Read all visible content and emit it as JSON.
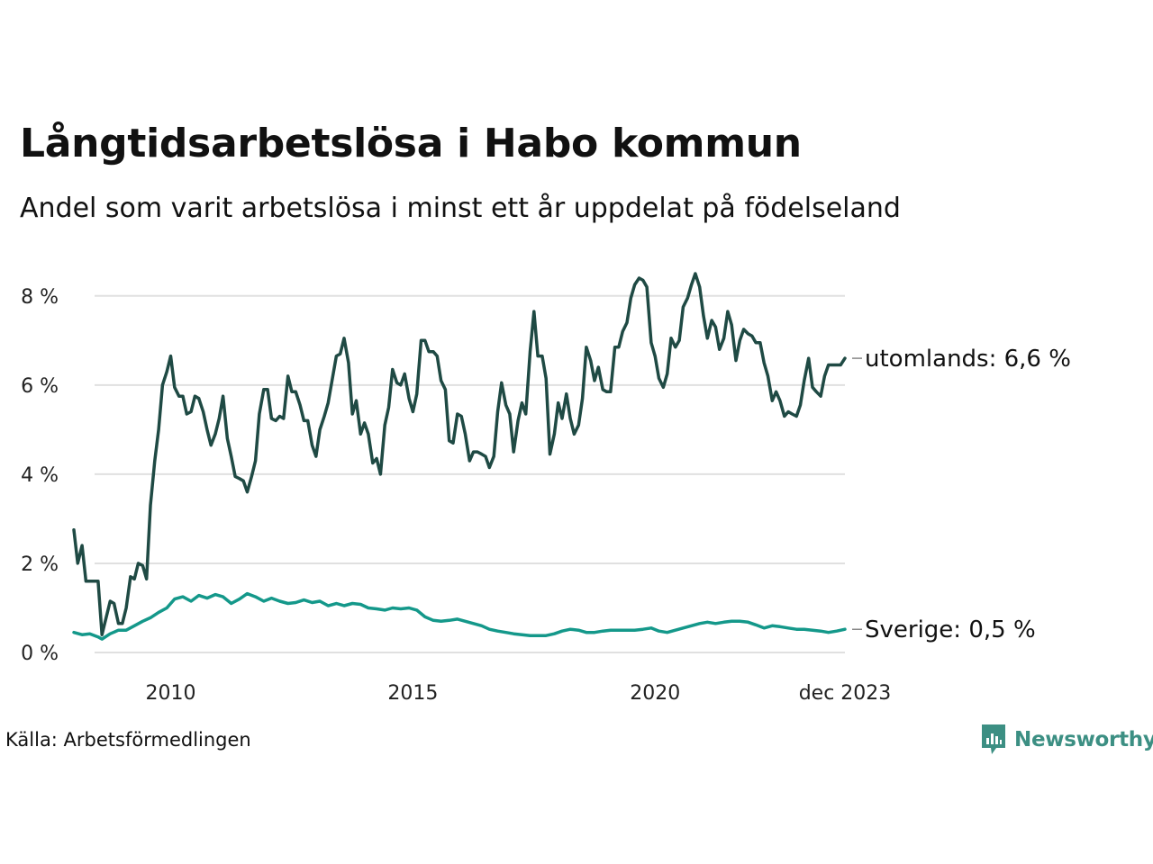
{
  "chart_data": {
    "type": "line",
    "title": "Långtidsarbetslösa i Habo kommun",
    "subtitle": "Andel som varit arbetslösa i minst ett år uppdelat på födelseland",
    "ylim": [
      0,
      8.5
    ],
    "yticks": [
      {
        "value": 0,
        "label": "0 %"
      },
      {
        "value": 2,
        "label": "2 %"
      },
      {
        "value": 4,
        "label": "4 %"
      },
      {
        "value": 6,
        "label": "6 %"
      },
      {
        "value": 8,
        "label": "8 %"
      }
    ],
    "xlim": [
      2008.0,
      2023.92
    ],
    "xticks": [
      {
        "value": 2010.0,
        "label": "2010"
      },
      {
        "value": 2015.0,
        "label": "2015"
      },
      {
        "value": 2020.0,
        "label": "2020"
      },
      {
        "value": 2023.92,
        "label": "dec 2023"
      }
    ],
    "grid": true,
    "series": [
      {
        "name": "utomlands",
        "end_label": "utomlands: 6,6 %",
        "color": "#1f4a44",
        "points": [
          [
            2008.0,
            2.75
          ],
          [
            2008.08,
            2.0
          ],
          [
            2008.17,
            2.4
          ],
          [
            2008.25,
            1.6
          ],
          [
            2008.5,
            1.6
          ],
          [
            2008.58,
            0.4
          ],
          [
            2008.75,
            1.15
          ],
          [
            2008.83,
            1.1
          ],
          [
            2008.92,
            0.65
          ],
          [
            2009.0,
            0.65
          ],
          [
            2009.08,
            1.0
          ],
          [
            2009.17,
            1.7
          ],
          [
            2009.25,
            1.65
          ],
          [
            2009.33,
            2.0
          ],
          [
            2009.42,
            1.95
          ],
          [
            2009.5,
            1.65
          ],
          [
            2009.58,
            3.3
          ],
          [
            2009.67,
            4.3
          ],
          [
            2009.75,
            5.0
          ],
          [
            2009.83,
            6.0
          ],
          [
            2009.92,
            6.3
          ],
          [
            2010.0,
            6.65
          ],
          [
            2010.08,
            5.95
          ],
          [
            2010.17,
            5.75
          ],
          [
            2010.25,
            5.75
          ],
          [
            2010.33,
            5.35
          ],
          [
            2010.42,
            5.4
          ],
          [
            2010.5,
            5.75
          ],
          [
            2010.58,
            5.7
          ],
          [
            2010.67,
            5.4
          ],
          [
            2010.75,
            5.0
          ],
          [
            2010.83,
            4.65
          ],
          [
            2010.92,
            4.9
          ],
          [
            2011.0,
            5.25
          ],
          [
            2011.08,
            5.75
          ],
          [
            2011.17,
            4.8
          ],
          [
            2011.25,
            4.4
          ],
          [
            2011.33,
            3.95
          ],
          [
            2011.42,
            3.9
          ],
          [
            2011.5,
            3.85
          ],
          [
            2011.58,
            3.6
          ],
          [
            2011.67,
            3.95
          ],
          [
            2011.75,
            4.3
          ],
          [
            2011.83,
            5.35
          ],
          [
            2011.92,
            5.9
          ],
          [
            2012.0,
            5.9
          ],
          [
            2012.08,
            5.25
          ],
          [
            2012.17,
            5.2
          ],
          [
            2012.25,
            5.3
          ],
          [
            2012.33,
            5.25
          ],
          [
            2012.42,
            6.2
          ],
          [
            2012.5,
            5.85
          ],
          [
            2012.58,
            5.85
          ],
          [
            2012.67,
            5.55
          ],
          [
            2012.75,
            5.2
          ],
          [
            2012.83,
            5.2
          ],
          [
            2012.92,
            4.65
          ],
          [
            2013.0,
            4.4
          ],
          [
            2013.08,
            5.0
          ],
          [
            2013.17,
            5.3
          ],
          [
            2013.25,
            5.6
          ],
          [
            2013.33,
            6.1
          ],
          [
            2013.42,
            6.65
          ],
          [
            2013.5,
            6.7
          ],
          [
            2013.58,
            7.05
          ],
          [
            2013.67,
            6.5
          ],
          [
            2013.75,
            5.35
          ],
          [
            2013.83,
            5.65
          ],
          [
            2013.92,
            4.9
          ],
          [
            2014.0,
            5.15
          ],
          [
            2014.08,
            4.9
          ],
          [
            2014.17,
            4.25
          ],
          [
            2014.25,
            4.35
          ],
          [
            2014.33,
            4.0
          ],
          [
            2014.42,
            5.1
          ],
          [
            2014.5,
            5.5
          ],
          [
            2014.58,
            6.35
          ],
          [
            2014.67,
            6.05
          ],
          [
            2014.75,
            6.0
          ],
          [
            2014.83,
            6.25
          ],
          [
            2014.92,
            5.7
          ],
          [
            2015.0,
            5.4
          ],
          [
            2015.08,
            5.8
          ],
          [
            2015.17,
            7.0
          ],
          [
            2015.25,
            7.0
          ],
          [
            2015.33,
            6.75
          ],
          [
            2015.42,
            6.75
          ],
          [
            2015.5,
            6.65
          ],
          [
            2015.58,
            6.1
          ],
          [
            2015.67,
            5.9
          ],
          [
            2015.75,
            4.75
          ],
          [
            2015.83,
            4.7
          ],
          [
            2015.92,
            5.35
          ],
          [
            2016.0,
            5.3
          ],
          [
            2016.08,
            4.9
          ],
          [
            2016.17,
            4.3
          ],
          [
            2016.25,
            4.5
          ],
          [
            2016.33,
            4.5
          ],
          [
            2016.42,
            4.45
          ],
          [
            2016.5,
            4.4
          ],
          [
            2016.58,
            4.15
          ],
          [
            2016.67,
            4.4
          ],
          [
            2016.75,
            5.4
          ],
          [
            2016.83,
            6.05
          ],
          [
            2016.92,
            5.55
          ],
          [
            2017.0,
            5.35
          ],
          [
            2017.08,
            4.5
          ],
          [
            2017.17,
            5.2
          ],
          [
            2017.25,
            5.6
          ],
          [
            2017.33,
            5.35
          ],
          [
            2017.42,
            6.75
          ],
          [
            2017.5,
            7.65
          ],
          [
            2017.58,
            6.65
          ],
          [
            2017.67,
            6.65
          ],
          [
            2017.75,
            6.15
          ],
          [
            2017.83,
            4.45
          ],
          [
            2017.92,
            4.9
          ],
          [
            2018.0,
            5.6
          ],
          [
            2018.08,
            5.25
          ],
          [
            2018.17,
            5.8
          ],
          [
            2018.25,
            5.25
          ],
          [
            2018.33,
            4.9
          ],
          [
            2018.42,
            5.1
          ],
          [
            2018.5,
            5.7
          ],
          [
            2018.58,
            6.85
          ],
          [
            2018.67,
            6.55
          ],
          [
            2018.75,
            6.1
          ],
          [
            2018.83,
            6.4
          ],
          [
            2018.92,
            5.9
          ],
          [
            2019.0,
            5.85
          ],
          [
            2019.08,
            5.85
          ],
          [
            2019.17,
            6.85
          ],
          [
            2019.25,
            6.85
          ],
          [
            2019.33,
            7.2
          ],
          [
            2019.42,
            7.4
          ],
          [
            2019.5,
            7.95
          ],
          [
            2019.58,
            8.25
          ],
          [
            2019.67,
            8.4
          ],
          [
            2019.75,
            8.35
          ],
          [
            2019.83,
            8.2
          ],
          [
            2019.92,
            6.95
          ],
          [
            2020.0,
            6.65
          ],
          [
            2020.08,
            6.15
          ],
          [
            2020.17,
            5.95
          ],
          [
            2020.25,
            6.25
          ],
          [
            2020.33,
            7.05
          ],
          [
            2020.42,
            6.85
          ],
          [
            2020.5,
            7.0
          ],
          [
            2020.58,
            7.75
          ],
          [
            2020.67,
            7.95
          ],
          [
            2020.75,
            8.25
          ],
          [
            2020.83,
            8.5
          ],
          [
            2020.92,
            8.2
          ],
          [
            2021.0,
            7.55
          ],
          [
            2021.08,
            7.05
          ],
          [
            2021.17,
            7.45
          ],
          [
            2021.25,
            7.3
          ],
          [
            2021.33,
            6.8
          ],
          [
            2021.42,
            7.05
          ],
          [
            2021.5,
            7.65
          ],
          [
            2021.58,
            7.35
          ],
          [
            2021.67,
            6.55
          ],
          [
            2021.75,
            7.0
          ],
          [
            2021.83,
            7.25
          ],
          [
            2021.92,
            7.15
          ],
          [
            2022.0,
            7.1
          ],
          [
            2022.08,
            6.95
          ],
          [
            2022.17,
            6.95
          ],
          [
            2022.25,
            6.5
          ],
          [
            2022.33,
            6.2
          ],
          [
            2022.42,
            5.65
          ],
          [
            2022.5,
            5.85
          ],
          [
            2022.58,
            5.65
          ],
          [
            2022.67,
            5.3
          ],
          [
            2022.75,
            5.4
          ],
          [
            2022.83,
            5.35
          ],
          [
            2022.92,
            5.3
          ],
          [
            2023.0,
            5.55
          ],
          [
            2023.08,
            6.1
          ],
          [
            2023.17,
            6.6
          ],
          [
            2023.25,
            5.95
          ],
          [
            2023.33,
            5.85
          ],
          [
            2023.42,
            5.75
          ],
          [
            2023.5,
            6.2
          ],
          [
            2023.58,
            6.45
          ],
          [
            2023.67,
            6.45
          ],
          [
            2023.75,
            6.45
          ],
          [
            2023.83,
            6.45
          ],
          [
            2023.92,
            6.6
          ]
        ]
      },
      {
        "name": "Sverige",
        "end_label": "Sverige: 0,5 %",
        "color": "#14988a",
        "points": [
          [
            2008.0,
            0.45
          ],
          [
            2008.17,
            0.4
          ],
          [
            2008.33,
            0.42
          ],
          [
            2008.5,
            0.35
          ],
          [
            2008.58,
            0.3
          ],
          [
            2008.75,
            0.42
          ],
          [
            2008.92,
            0.5
          ],
          [
            2009.08,
            0.5
          ],
          [
            2009.25,
            0.6
          ],
          [
            2009.42,
            0.7
          ],
          [
            2009.58,
            0.78
          ],
          [
            2009.75,
            0.9
          ],
          [
            2009.92,
            1.0
          ],
          [
            2010.08,
            1.2
          ],
          [
            2010.25,
            1.25
          ],
          [
            2010.42,
            1.15
          ],
          [
            2010.58,
            1.28
          ],
          [
            2010.75,
            1.22
          ],
          [
            2010.92,
            1.3
          ],
          [
            2011.08,
            1.25
          ],
          [
            2011.25,
            1.1
          ],
          [
            2011.42,
            1.2
          ],
          [
            2011.58,
            1.32
          ],
          [
            2011.75,
            1.25
          ],
          [
            2011.92,
            1.15
          ],
          [
            2012.08,
            1.22
          ],
          [
            2012.25,
            1.15
          ],
          [
            2012.42,
            1.1
          ],
          [
            2012.58,
            1.12
          ],
          [
            2012.75,
            1.18
          ],
          [
            2012.92,
            1.12
          ],
          [
            2013.08,
            1.15
          ],
          [
            2013.25,
            1.05
          ],
          [
            2013.42,
            1.1
          ],
          [
            2013.58,
            1.05
          ],
          [
            2013.75,
            1.1
          ],
          [
            2013.92,
            1.08
          ],
          [
            2014.08,
            1.0
          ],
          [
            2014.25,
            0.98
          ],
          [
            2014.42,
            0.95
          ],
          [
            2014.58,
            1.0
          ],
          [
            2014.75,
            0.98
          ],
          [
            2014.92,
            1.0
          ],
          [
            2015.08,
            0.95
          ],
          [
            2015.25,
            0.8
          ],
          [
            2015.42,
            0.72
          ],
          [
            2015.58,
            0.7
          ],
          [
            2015.75,
            0.72
          ],
          [
            2015.92,
            0.75
          ],
          [
            2016.08,
            0.7
          ],
          [
            2016.25,
            0.65
          ],
          [
            2016.42,
            0.6
          ],
          [
            2016.58,
            0.52
          ],
          [
            2016.75,
            0.48
          ],
          [
            2016.92,
            0.45
          ],
          [
            2017.08,
            0.42
          ],
          [
            2017.25,
            0.4
          ],
          [
            2017.42,
            0.38
          ],
          [
            2017.58,
            0.38
          ],
          [
            2017.75,
            0.38
          ],
          [
            2017.92,
            0.42
          ],
          [
            2018.08,
            0.48
          ],
          [
            2018.25,
            0.52
          ],
          [
            2018.42,
            0.5
          ],
          [
            2018.58,
            0.45
          ],
          [
            2018.75,
            0.45
          ],
          [
            2018.92,
            0.48
          ],
          [
            2019.08,
            0.5
          ],
          [
            2019.25,
            0.5
          ],
          [
            2019.42,
            0.5
          ],
          [
            2019.58,
            0.5
          ],
          [
            2019.75,
            0.52
          ],
          [
            2019.92,
            0.55
          ],
          [
            2020.08,
            0.48
          ],
          [
            2020.25,
            0.45
          ],
          [
            2020.42,
            0.5
          ],
          [
            2020.58,
            0.55
          ],
          [
            2020.75,
            0.6
          ],
          [
            2020.92,
            0.65
          ],
          [
            2021.08,
            0.68
          ],
          [
            2021.25,
            0.65
          ],
          [
            2021.42,
            0.68
          ],
          [
            2021.58,
            0.7
          ],
          [
            2021.75,
            0.7
          ],
          [
            2021.92,
            0.68
          ],
          [
            2022.08,
            0.62
          ],
          [
            2022.25,
            0.55
          ],
          [
            2022.42,
            0.6
          ],
          [
            2022.58,
            0.58
          ],
          [
            2022.75,
            0.55
          ],
          [
            2022.92,
            0.52
          ],
          [
            2023.08,
            0.52
          ],
          [
            2023.25,
            0.5
          ],
          [
            2023.42,
            0.48
          ],
          [
            2023.58,
            0.45
          ],
          [
            2023.75,
            0.48
          ],
          [
            2023.92,
            0.52
          ]
        ]
      }
    ]
  },
  "source": "Källa: Arbetsförmedlingen",
  "brand": "Newsworthy"
}
